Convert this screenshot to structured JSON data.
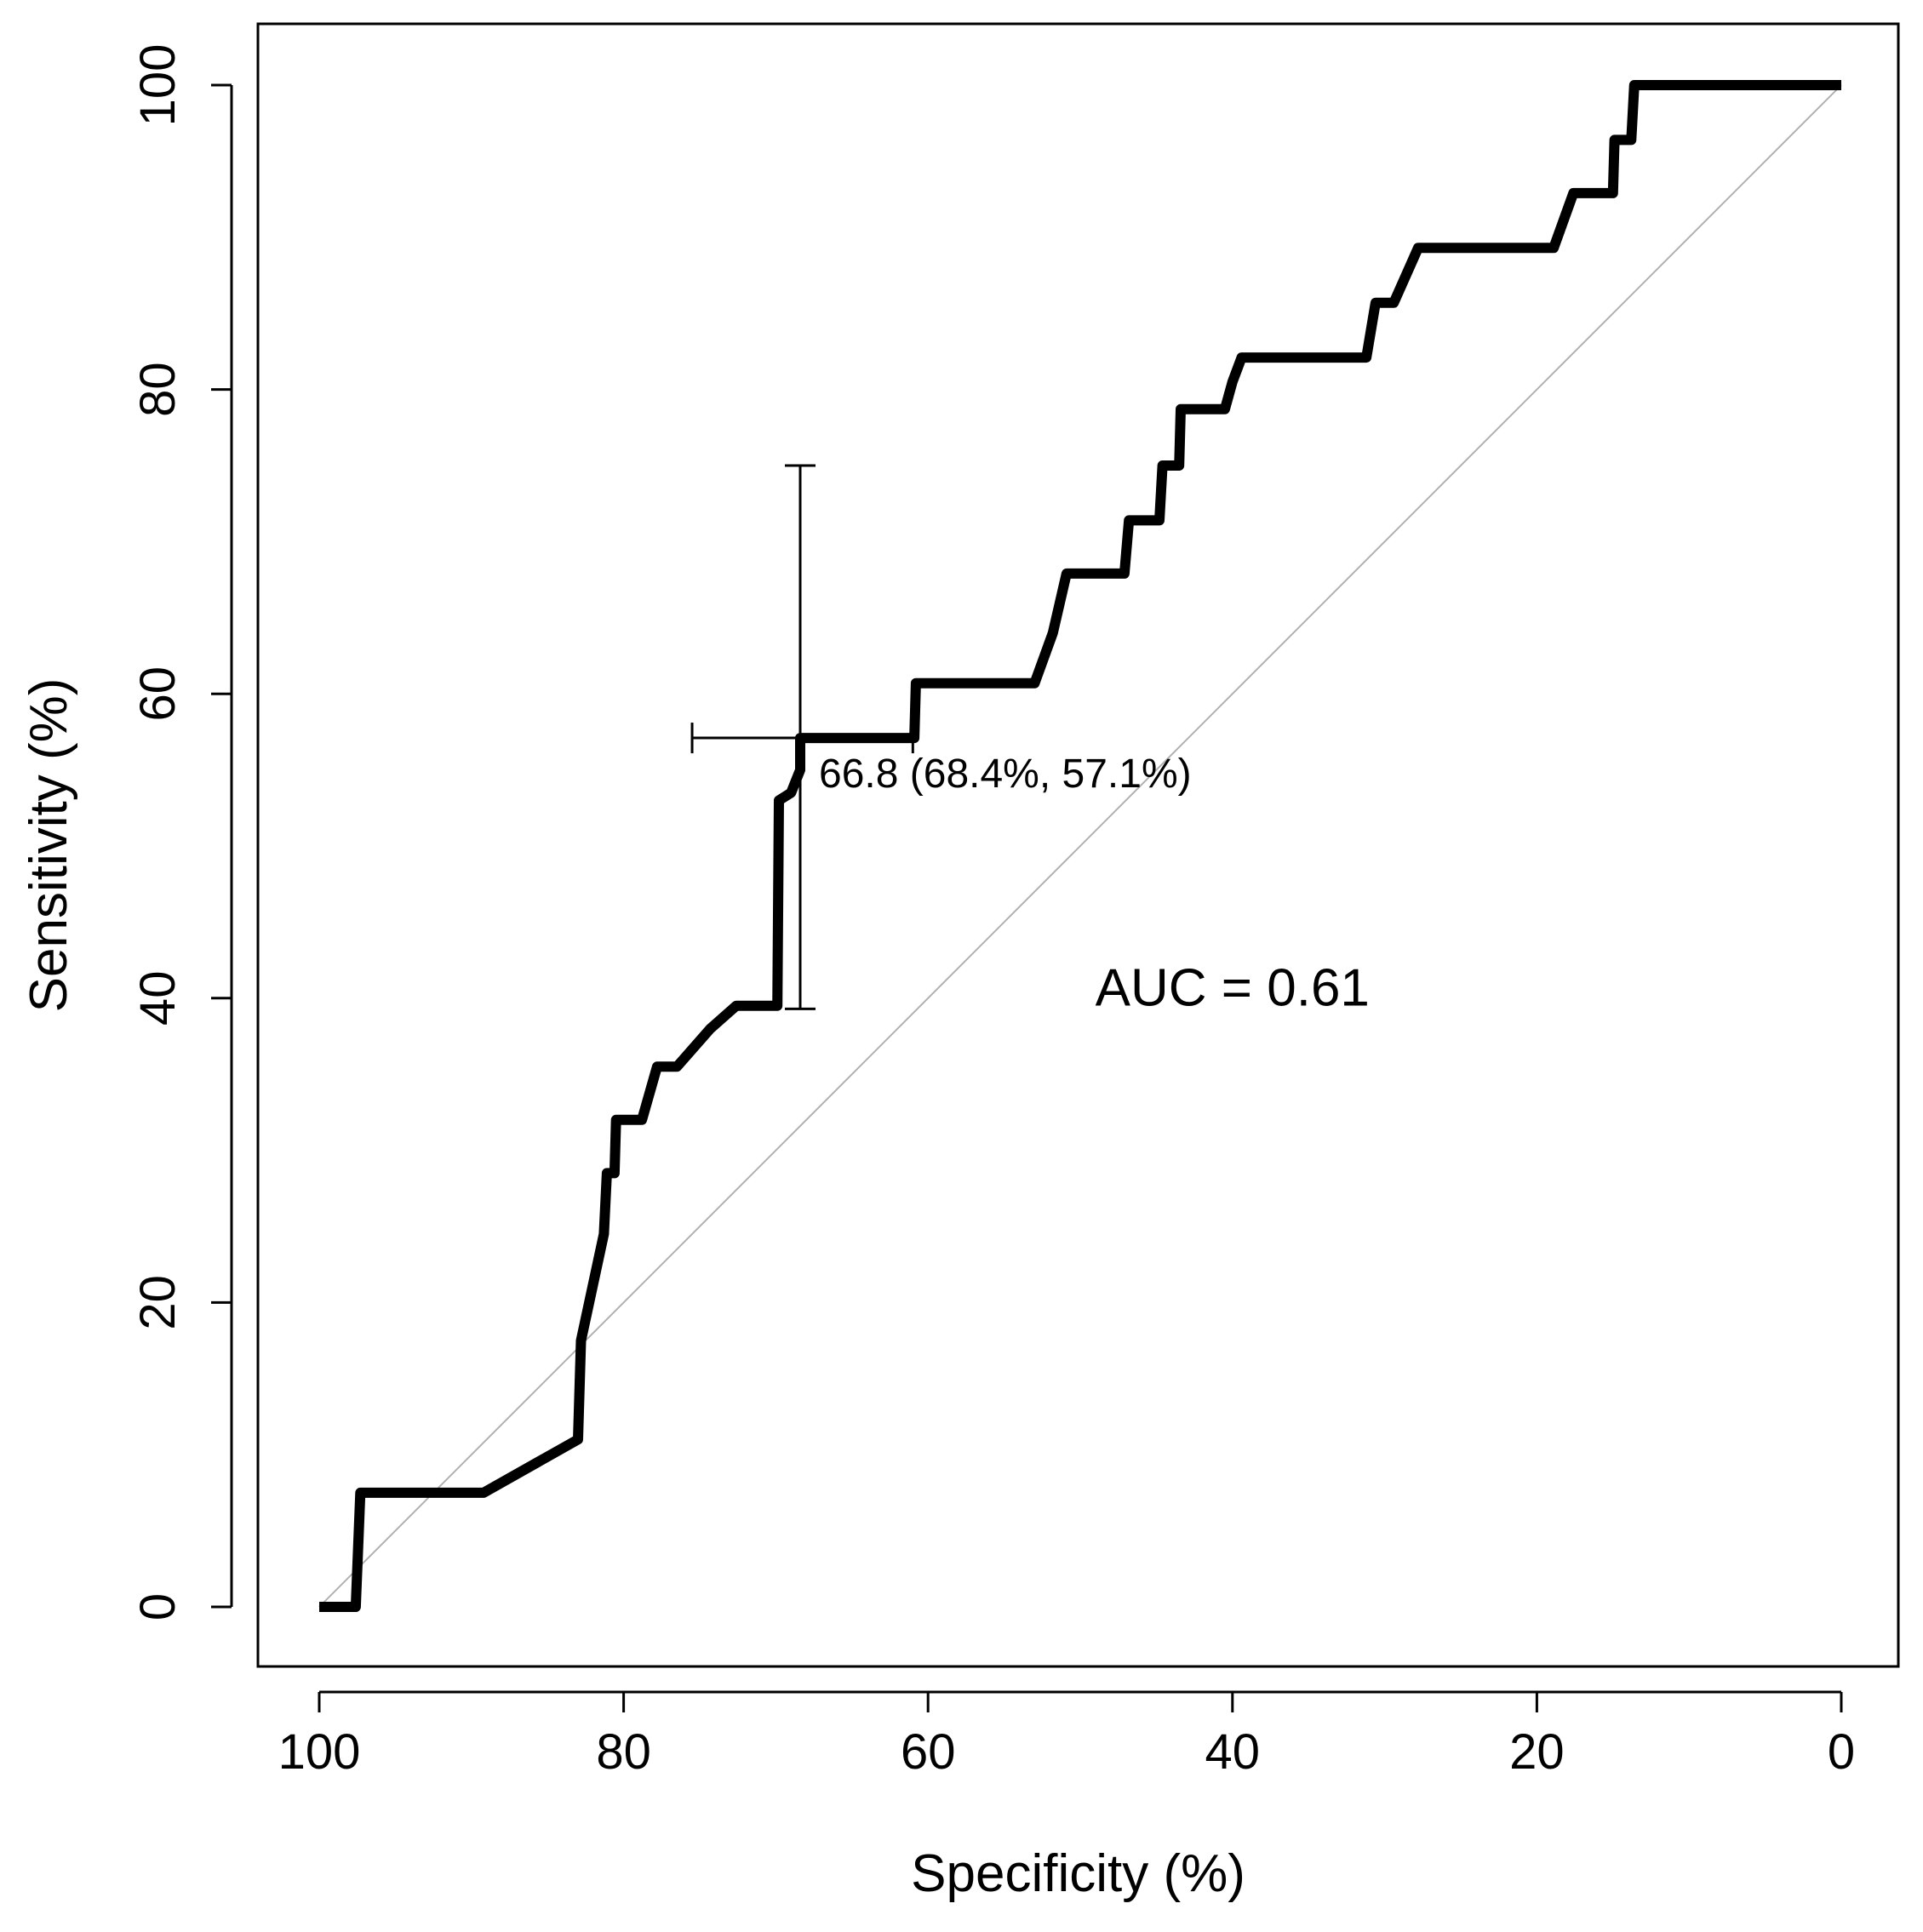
{
  "chart_data": {
    "type": "line",
    "title": "",
    "xlabel": "Specificity (%)",
    "ylabel": "Sensitivity (%)",
    "xlim": [
      100,
      0
    ],
    "ylim": [
      0,
      100
    ],
    "x_reversed": true,
    "grid": false,
    "x_ticks": [
      100,
      80,
      60,
      40,
      20,
      0
    ],
    "y_ticks": [
      0,
      20,
      40,
      60,
      80,
      100
    ],
    "x_tick_labels": [
      "100",
      "80",
      "60",
      "40",
      "20",
      "0"
    ],
    "y_tick_labels": [
      "0",
      "20",
      "40",
      "60",
      "80",
      "100"
    ],
    "series": [
      {
        "name": "ROC curve",
        "color": "#000000",
        "x": [
          100,
          97.6,
          97.3,
          89.2,
          83.0,
          82.8,
          81.3,
          81.1,
          80.6,
          80.5,
          78.8,
          77.8,
          76.5,
          74.3,
          72.6,
          69.9,
          69.8,
          69.0,
          68.4,
          68.4,
          60.9,
          60.8,
          53.0,
          51.8,
          50.9,
          47.1,
          46.8,
          44.8,
          44.6,
          43.5,
          43.4,
          40.5,
          40.0,
          39.4,
          31.2,
          30.6,
          29.4,
          27.8,
          18.9,
          17.6,
          15.0,
          14.9,
          13.8,
          13.6,
          0
        ],
        "y": [
          0,
          0,
          7.5,
          7.5,
          11.0,
          17.5,
          24.5,
          28.5,
          28.5,
          32.0,
          32.0,
          35.5,
          35.5,
          38.0,
          39.5,
          39.5,
          53.0,
          53.5,
          55.0,
          57.1,
          57.1,
          60.7,
          60.7,
          64.0,
          67.9,
          67.9,
          71.4,
          71.4,
          75.0,
          75.0,
          78.7,
          78.7,
          80.5,
          82.1,
          82.1,
          85.7,
          85.7,
          89.3,
          89.3,
          92.9,
          92.9,
          96.4,
          96.4,
          100,
          100
        ]
      }
    ],
    "reference_line": {
      "name": "chance diagonal",
      "x": [
        100,
        0
      ],
      "y": [
        0,
        100
      ],
      "color": "#b0b0b0"
    },
    "threshold_point": {
      "threshold": 66.8,
      "specificity": 68.4,
      "sensitivity": 57.1,
      "specificity_ci": [
        61.0,
        75.5
      ],
      "sensitivity_ci": [
        39.3,
        75.0
      ],
      "label": "66.8 (68.4%, 57.1%)"
    },
    "annotations": [
      {
        "text": "AUC = 0.61",
        "x": 40,
        "y": 39.5
      }
    ]
  }
}
